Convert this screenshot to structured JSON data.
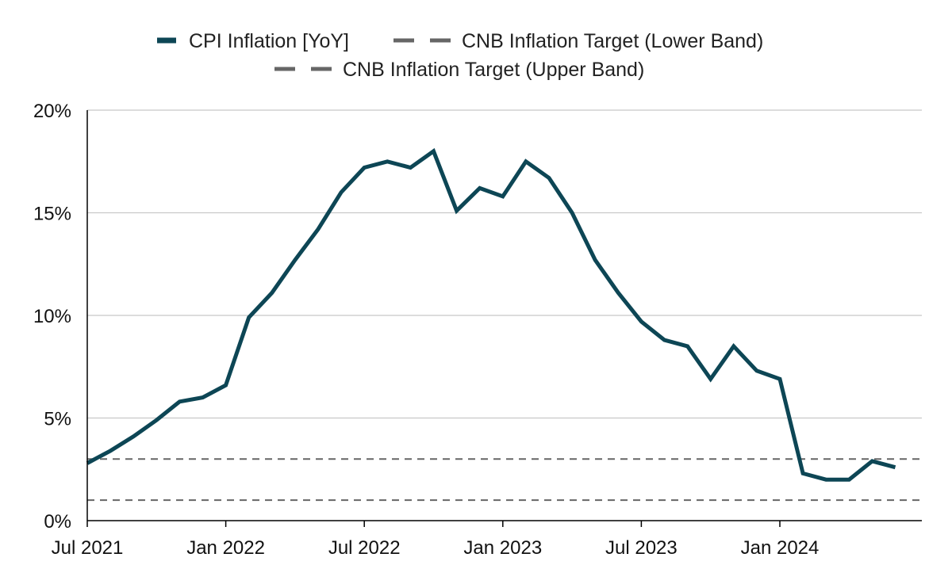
{
  "chart_data": {
    "type": "line",
    "title": "",
    "xlabel": "",
    "ylabel": "",
    "ylim": [
      0,
      20
    ],
    "yticks": [
      0,
      5,
      10,
      15,
      20
    ],
    "ytick_labels": [
      "0%",
      "5%",
      "10%",
      "15%",
      "20%"
    ],
    "xlim": [
      "2021-07",
      "2024-06"
    ],
    "xticks": [
      "2021-07",
      "2022-01",
      "2022-07",
      "2023-01",
      "2023-07",
      "2024-01"
    ],
    "xtick_labels": [
      "Jul 2021",
      "Jan 2022",
      "Jul 2022",
      "Jan 2023",
      "Jul 2023",
      "Jan 2024"
    ],
    "grid": "horizontal",
    "legend_position": "top-center",
    "x": [
      "2021-07",
      "2021-08",
      "2021-09",
      "2021-10",
      "2021-11",
      "2021-12",
      "2022-01",
      "2022-02",
      "2022-03",
      "2022-04",
      "2022-05",
      "2022-06",
      "2022-07",
      "2022-08",
      "2022-09",
      "2022-10",
      "2022-11",
      "2022-12",
      "2023-01",
      "2023-02",
      "2023-03",
      "2023-04",
      "2023-05",
      "2023-06",
      "2023-07",
      "2023-08",
      "2023-09",
      "2023-10",
      "2023-11",
      "2023-12",
      "2024-01",
      "2024-02",
      "2024-03",
      "2024-04",
      "2024-05",
      "2024-06"
    ],
    "series": [
      {
        "name": "CPI Inflation [YoY]",
        "color": "#0d4655",
        "style": "solid",
        "values": [
          2.8,
          3.4,
          4.1,
          4.9,
          5.8,
          6.0,
          6.6,
          9.9,
          11.1,
          12.7,
          14.2,
          16.0,
          17.2,
          17.5,
          17.2,
          18.0,
          15.1,
          16.2,
          15.8,
          17.5,
          16.7,
          15.0,
          12.7,
          11.1,
          9.7,
          8.8,
          8.5,
          6.9,
          8.5,
          7.3,
          6.9,
          2.3,
          2.0,
          2.0,
          2.9,
          2.6
        ]
      },
      {
        "name": "CNB Inflation Target (Lower Band)",
        "color": "#666666",
        "style": "dashed",
        "values": [
          3,
          3,
          3,
          3,
          3,
          3,
          3,
          3,
          3,
          3,
          3,
          3,
          3,
          3,
          3,
          3,
          3,
          3,
          3,
          3,
          3,
          3,
          3,
          3,
          3,
          3,
          3,
          3,
          3,
          3,
          3,
          3,
          3,
          3,
          3,
          3
        ]
      },
      {
        "name": "CNB Inflation Target (Upper Band)",
        "color": "#666666",
        "style": "dashed",
        "values": [
          1,
          1,
          1,
          1,
          1,
          1,
          1,
          1,
          1,
          1,
          1,
          1,
          1,
          1,
          1,
          1,
          1,
          1,
          1,
          1,
          1,
          1,
          1,
          1,
          1,
          1,
          1,
          1,
          1,
          1,
          1,
          1,
          1,
          1,
          1,
          1
        ]
      }
    ]
  }
}
